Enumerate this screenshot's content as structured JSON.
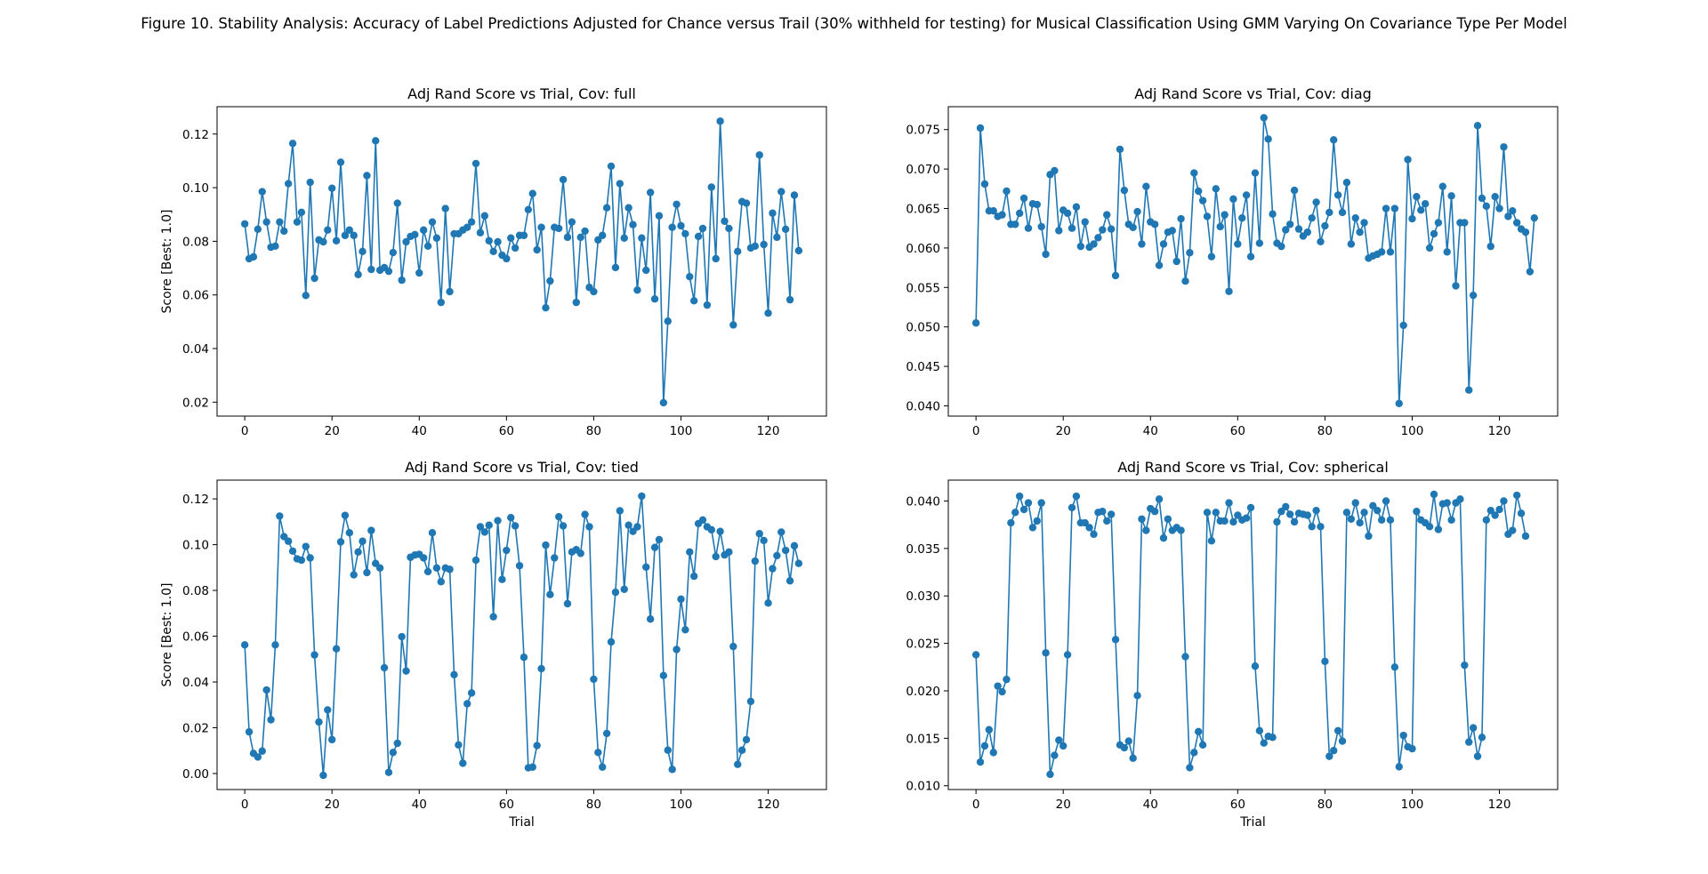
{
  "figure_title": "Figure 10. Stability Analysis: Accuracy of Label Predictions Adjusted for Chance versus Trail (30% withheld for testing) for Musical Classification Using GMM Varying On Covariance Type Per Model",
  "colors": {
    "series": "#1f77b4",
    "axes": "#000000",
    "background": "#ffffff"
  },
  "chart_data": [
    {
      "type": "line",
      "title": "Adj Rand Score vs Trial, Cov: full",
      "xlabel": "",
      "ylabel": "Score [Best: 1.0]",
      "xlim": [
        -6.35,
        133.35
      ],
      "ylim": [
        0.0148,
        0.1302
      ],
      "xticks": [
        0,
        20,
        40,
        60,
        80,
        100,
        120
      ],
      "yticks": [
        0.02,
        0.04,
        0.06,
        0.08,
        0.1,
        0.12
      ],
      "ytick_labels": [
        "0.02",
        "0.04",
        "0.06",
        "0.08",
        "0.10",
        "0.12"
      ],
      "grid": false,
      "series": [
        {
          "marker": "circle",
          "values": [
            0.0865,
            0.0735,
            0.0742,
            0.0845,
            0.0985,
            0.0872,
            0.0778,
            0.0782,
            0.0872,
            0.0838,
            0.1015,
            0.1165,
            0.0872,
            0.0908,
            0.0598,
            0.102,
            0.0662,
            0.0805,
            0.0798,
            0.0842,
            0.0998,
            0.0802,
            0.1095,
            0.0822,
            0.0842,
            0.0822,
            0.0676,
            0.0762,
            0.1045,
            0.0695,
            0.1175,
            0.0692,
            0.0702,
            0.0688,
            0.0758,
            0.0942,
            0.0655,
            0.0798,
            0.0818,
            0.0825,
            0.0682,
            0.0842,
            0.0782,
            0.0872,
            0.0812,
            0.0572,
            0.0922,
            0.0612,
            0.0828,
            0.0828,
            0.0842,
            0.0852,
            0.0872,
            0.109,
            0.0832,
            0.0895,
            0.0802,
            0.0762,
            0.0798,
            0.0748,
            0.0735,
            0.0812,
            0.0775,
            0.0822,
            0.0822,
            0.0918,
            0.0978,
            0.0768,
            0.0852,
            0.0552,
            0.0652,
            0.0852,
            0.0848,
            0.103,
            0.0815,
            0.0872,
            0.0572,
            0.0815,
            0.0838,
            0.0628,
            0.0612,
            0.0805,
            0.0822,
            0.0925,
            0.108,
            0.0702,
            0.1015,
            0.0812,
            0.0925,
            0.0862,
            0.0618,
            0.0812,
            0.0692,
            0.0982,
            0.0585,
            0.0895,
            0.0198,
            0.0502,
            0.0852,
            0.0938,
            0.0858,
            0.0828,
            0.0668,
            0.0578,
            0.0818,
            0.0848,
            0.0562,
            0.1002,
            0.0735,
            0.1248,
            0.0875,
            0.0848,
            0.0488,
            0.0762,
            0.0948,
            0.0942,
            0.0775,
            0.0782,
            0.1122,
            0.0788,
            0.0532,
            0.0905,
            0.0815,
            0.0985,
            0.0845,
            0.0582,
            0.0972,
            0.0765
          ]
        }
      ]
    },
    {
      "type": "line",
      "title": "Adj Rand Score vs Trial, Cov: diag",
      "xlabel": "",
      "ylabel": "",
      "xlim": [
        -6.35,
        133.35
      ],
      "ylim": [
        0.0387,
        0.0779
      ],
      "xticks": [
        0,
        20,
        40,
        60,
        80,
        100,
        120
      ],
      "yticks": [
        0.04,
        0.045,
        0.05,
        0.055,
        0.06,
        0.065,
        0.07,
        0.075
      ],
      "ytick_labels": [
        "0.040",
        "0.045",
        "0.050",
        "0.055",
        "0.060",
        "0.065",
        "0.070",
        "0.075"
      ],
      "grid": false,
      "series": [
        {
          "marker": "circle",
          "values": [
            0.0505,
            0.0752,
            0.0681,
            0.0647,
            0.0647,
            0.064,
            0.0642,
            0.0672,
            0.063,
            0.063,
            0.0644,
            0.0663,
            0.0625,
            0.0656,
            0.0655,
            0.0627,
            0.0592,
            0.0693,
            0.0698,
            0.0622,
            0.0648,
            0.0644,
            0.0625,
            0.0652,
            0.0602,
            0.0633,
            0.0601,
            0.0605,
            0.0613,
            0.0623,
            0.0642,
            0.0624,
            0.0565,
            0.0725,
            0.0673,
            0.063,
            0.0626,
            0.0646,
            0.0605,
            0.0678,
            0.0633,
            0.063,
            0.0578,
            0.0605,
            0.062,
            0.0622,
            0.0583,
            0.0637,
            0.0558,
            0.0594,
            0.0695,
            0.0672,
            0.066,
            0.064,
            0.0589,
            0.0675,
            0.0627,
            0.0642,
            0.0545,
            0.0662,
            0.0605,
            0.0638,
            0.0667,
            0.0589,
            0.0695,
            0.0606,
            0.0765,
            0.0738,
            0.0643,
            0.0606,
            0.0602,
            0.0623,
            0.063,
            0.0673,
            0.0624,
            0.0615,
            0.062,
            0.0638,
            0.0658,
            0.0608,
            0.0628,
            0.0645,
            0.0737,
            0.0667,
            0.0645,
            0.0683,
            0.0605,
            0.0638,
            0.062,
            0.0632,
            0.0587,
            0.059,
            0.0592,
            0.0595,
            0.065,
            0.0595,
            0.065,
            0.0403,
            0.0502,
            0.0712,
            0.0637,
            0.0665,
            0.0648,
            0.0656,
            0.06,
            0.0618,
            0.0632,
            0.0678,
            0.0595,
            0.0666,
            0.0552,
            0.0632,
            0.0632,
            0.042,
            0.054,
            0.0755,
            0.0663,
            0.0653,
            0.0602,
            0.0665,
            0.065,
            0.0728,
            0.064,
            0.0647,
            0.0632,
            0.0624,
            0.062,
            0.057,
            0.0638
          ]
        }
      ]
    },
    {
      "type": "line",
      "title": "Adj Rand Score vs Trial, Cov: tied",
      "xlabel": "Trial",
      "ylabel": "Score [Best: 1.0]",
      "xlim": [
        -6.35,
        133.35
      ],
      "ylim": [
        -0.007,
        0.1282
      ],
      "xticks": [
        0,
        20,
        40,
        60,
        80,
        100,
        120
      ],
      "yticks": [
        0.0,
        0.02,
        0.04,
        0.06,
        0.08,
        0.1,
        0.12
      ],
      "ytick_labels": [
        "0.00",
        "0.02",
        "0.04",
        "0.06",
        "0.08",
        "0.10",
        "0.12"
      ],
      "grid": false,
      "series": [
        {
          "marker": "circle",
          "values": [
            0.0562,
            0.0182,
            0.0088,
            0.0072,
            0.0098,
            0.0365,
            0.0235,
            0.0562,
            0.1125,
            0.1035,
            0.1015,
            0.0972,
            0.0938,
            0.0932,
            0.0992,
            0.0942,
            0.0518,
            0.0225,
            -0.0008,
            0.0278,
            0.0148,
            0.0545,
            0.1012,
            0.1128,
            0.1052,
            0.0868,
            0.0968,
            0.1015,
            0.0878,
            0.1062,
            0.0918,
            0.0898,
            0.0462,
            0.0005,
            0.0092,
            0.0132,
            0.0598,
            0.0448,
            0.0945,
            0.0955,
            0.0958,
            0.0942,
            0.0882,
            0.1052,
            0.0898,
            0.0838,
            0.0898,
            0.0892,
            0.0432,
            0.0125,
            0.0045,
            0.0305,
            0.0352,
            0.0932,
            0.1078,
            0.1055,
            0.1085,
            0.0685,
            0.1105,
            0.0848,
            0.0975,
            0.1118,
            0.1082,
            0.0908,
            0.0508,
            0.0025,
            0.0028,
            0.0122,
            0.0458,
            0.0998,
            0.0782,
            0.0942,
            0.1122,
            0.1082,
            0.0742,
            0.0968,
            0.0978,
            0.0962,
            0.1132,
            0.1078,
            0.0412,
            0.0092,
            0.0028,
            0.0175,
            0.0575,
            0.0792,
            0.1148,
            0.0805,
            0.1085,
            0.1058,
            0.1078,
            0.1212,
            0.0902,
            0.0675,
            0.0988,
            0.1022,
            0.0428,
            0.0102,
            0.0018,
            0.0542,
            0.0762,
            0.0628,
            0.0968,
            0.0862,
            0.1092,
            0.1108,
            0.1078,
            0.1065,
            0.0948,
            0.1058,
            0.0955,
            0.0968,
            0.0555,
            0.004,
            0.0102,
            0.0148,
            0.0315,
            0.0928,
            0.1048,
            0.1018,
            0.0745,
            0.0895,
            0.0952,
            0.1055,
            0.0975,
            0.0842,
            0.0995,
            0.0918
          ]
        }
      ]
    },
    {
      "type": "line",
      "title": "Adj Rand Score vs Trial, Cov: spherical",
      "xlabel": "Trial",
      "ylabel": "",
      "xlim": [
        -6.35,
        133.35
      ],
      "ylim": [
        0.0096,
        0.0422
      ],
      "xticks": [
        0,
        20,
        40,
        60,
        80,
        100,
        120
      ],
      "yticks": [
        0.01,
        0.015,
        0.02,
        0.025,
        0.03,
        0.035,
        0.04
      ],
      "ytick_labels": [
        "0.010",
        "0.015",
        "0.020",
        "0.025",
        "0.030",
        "0.035",
        "0.040"
      ],
      "grid": false,
      "series": [
        {
          "marker": "circle",
          "values": [
            0.0238,
            0.0125,
            0.0142,
            0.0159,
            0.0135,
            0.0205,
            0.0199,
            0.0212,
            0.0377,
            0.0388,
            0.0405,
            0.0391,
            0.0398,
            0.0372,
            0.0379,
            0.0398,
            0.024,
            0.0112,
            0.0132,
            0.0148,
            0.0142,
            0.0238,
            0.0393,
            0.0405,
            0.0377,
            0.0377,
            0.0372,
            0.0365,
            0.0388,
            0.0389,
            0.0379,
            0.0386,
            0.0254,
            0.0143,
            0.014,
            0.0147,
            0.0129,
            0.0195,
            0.0381,
            0.0369,
            0.0392,
            0.0389,
            0.0402,
            0.0361,
            0.0381,
            0.0369,
            0.0372,
            0.0369,
            0.0236,
            0.0119,
            0.0135,
            0.0157,
            0.0143,
            0.0388,
            0.0358,
            0.0388,
            0.0379,
            0.0379,
            0.0398,
            0.0378,
            0.0385,
            0.038,
            0.0382,
            0.0393,
            0.0226,
            0.0158,
            0.0145,
            0.0152,
            0.0151,
            0.0378,
            0.0389,
            0.0394,
            0.0386,
            0.0378,
            0.0387,
            0.0386,
            0.0385,
            0.0373,
            0.039,
            0.0373,
            0.0231,
            0.0131,
            0.0137,
            0.0158,
            0.0147,
            0.0388,
            0.0381,
            0.0398,
            0.0377,
            0.0388,
            0.0363,
            0.0395,
            0.039,
            0.038,
            0.04,
            0.038,
            0.0225,
            0.012,
            0.0153,
            0.0141,
            0.0139,
            0.0389,
            0.038,
            0.0377,
            0.0373,
            0.0407,
            0.037,
            0.0397,
            0.0398,
            0.038,
            0.0398,
            0.0402,
            0.0227,
            0.0146,
            0.0161,
            0.0131,
            0.0151,
            0.038,
            0.039,
            0.0385,
            0.0391,
            0.04,
            0.0365,
            0.0369,
            0.0406,
            0.0387,
            0.0363
          ]
        }
      ]
    }
  ]
}
